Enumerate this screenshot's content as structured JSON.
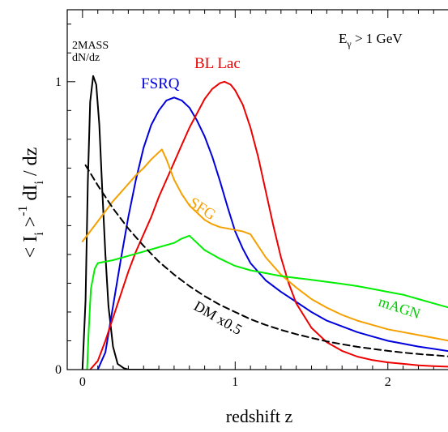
{
  "chart_data": {
    "type": "line",
    "xlabel": "redshift z",
    "ylabel": "< I_i >^-1 dI_i / dz",
    "energy_label": "E_γ > 1 GeV",
    "xlim": [
      -0.1,
      2.5
    ],
    "ylim": [
      0,
      1.25
    ],
    "x_major_ticks": [
      0,
      1,
      2
    ],
    "x_tick_labels": [
      "0",
      "1",
      "2"
    ],
    "y_major_ticks": [
      0,
      1
    ],
    "y_tick_labels": [
      "0",
      "1"
    ],
    "series": [
      {
        "name": "2MASS dN/dz",
        "label_line1": "2MASS",
        "label_line2": "dN/dz",
        "color": "#000000",
        "dashed": false,
        "points": [
          [
            0.0,
            0.0
          ],
          [
            0.02,
            0.24
          ],
          [
            0.035,
            0.65
          ],
          [
            0.05,
            0.93
          ],
          [
            0.07,
            1.02
          ],
          [
            0.09,
            0.99
          ],
          [
            0.11,
            0.85
          ],
          [
            0.13,
            0.62
          ],
          [
            0.15,
            0.4
          ],
          [
            0.17,
            0.22
          ],
          [
            0.2,
            0.08
          ],
          [
            0.23,
            0.02
          ],
          [
            0.27,
            0.005
          ],
          [
            0.3,
            0.0
          ],
          [
            0.5,
            0.0
          ]
        ]
      },
      {
        "name": "FSRQ",
        "color": "#0000dd",
        "dashed": false,
        "points": [
          [
            0.1,
            0.0
          ],
          [
            0.15,
            0.06
          ],
          [
            0.2,
            0.22
          ],
          [
            0.25,
            0.38
          ],
          [
            0.3,
            0.53
          ],
          [
            0.35,
            0.66
          ],
          [
            0.4,
            0.77
          ],
          [
            0.45,
            0.85
          ],
          [
            0.5,
            0.9
          ],
          [
            0.55,
            0.935
          ],
          [
            0.6,
            0.945
          ],
          [
            0.65,
            0.935
          ],
          [
            0.7,
            0.91
          ],
          [
            0.75,
            0.865
          ],
          [
            0.8,
            0.81
          ],
          [
            0.85,
            0.74
          ],
          [
            0.9,
            0.655
          ],
          [
            0.95,
            0.565
          ],
          [
            1.0,
            0.48
          ],
          [
            1.05,
            0.42
          ],
          [
            1.1,
            0.37
          ],
          [
            1.2,
            0.31
          ],
          [
            1.3,
            0.27
          ],
          [
            1.4,
            0.235
          ],
          [
            1.5,
            0.2
          ],
          [
            1.6,
            0.17
          ],
          [
            1.7,
            0.15
          ],
          [
            1.8,
            0.13
          ],
          [
            1.9,
            0.115
          ],
          [
            2.0,
            0.1
          ],
          [
            2.1,
            0.09
          ],
          [
            2.2,
            0.08
          ],
          [
            2.3,
            0.072
          ],
          [
            2.4,
            0.064
          ],
          [
            2.5,
            0.058
          ]
        ]
      },
      {
        "name": "BL Lac",
        "color": "#ee0000",
        "dashed": false,
        "points": [
          [
            0.05,
            0.0
          ],
          [
            0.1,
            0.03
          ],
          [
            0.15,
            0.1
          ],
          [
            0.2,
            0.18
          ],
          [
            0.25,
            0.26
          ],
          [
            0.3,
            0.34
          ],
          [
            0.35,
            0.41
          ],
          [
            0.4,
            0.47
          ],
          [
            0.45,
            0.53
          ],
          [
            0.5,
            0.6
          ],
          [
            0.55,
            0.66
          ],
          [
            0.6,
            0.72
          ],
          [
            0.65,
            0.78
          ],
          [
            0.7,
            0.84
          ],
          [
            0.75,
            0.89
          ],
          [
            0.8,
            0.94
          ],
          [
            0.85,
            0.975
          ],
          [
            0.9,
            0.995
          ],
          [
            0.93,
            1.0
          ],
          [
            0.97,
            0.99
          ],
          [
            1.0,
            0.97
          ],
          [
            1.05,
            0.92
          ],
          [
            1.1,
            0.84
          ],
          [
            1.15,
            0.74
          ],
          [
            1.2,
            0.62
          ],
          [
            1.25,
            0.5
          ],
          [
            1.3,
            0.39
          ],
          [
            1.35,
            0.3
          ],
          [
            1.4,
            0.23
          ],
          [
            1.5,
            0.145
          ],
          [
            1.6,
            0.095
          ],
          [
            1.7,
            0.065
          ],
          [
            1.8,
            0.045
          ],
          [
            1.9,
            0.033
          ],
          [
            2.0,
            0.025
          ],
          [
            2.1,
            0.02
          ],
          [
            2.2,
            0.015
          ],
          [
            2.3,
            0.012
          ],
          [
            2.4,
            0.01
          ],
          [
            2.5,
            0.008
          ]
        ]
      },
      {
        "name": "SFG",
        "color": "#f5a000",
        "dashed": false,
        "points": [
          [
            0.0,
            0.445
          ],
          [
            0.05,
            0.48
          ],
          [
            0.1,
            0.515
          ],
          [
            0.15,
            0.55
          ],
          [
            0.2,
            0.585
          ],
          [
            0.25,
            0.615
          ],
          [
            0.3,
            0.645
          ],
          [
            0.35,
            0.675
          ],
          [
            0.4,
            0.7
          ],
          [
            0.45,
            0.73
          ],
          [
            0.5,
            0.755
          ],
          [
            0.52,
            0.765
          ],
          [
            0.55,
            0.73
          ],
          [
            0.6,
            0.66
          ],
          [
            0.65,
            0.61
          ],
          [
            0.7,
            0.57
          ],
          [
            0.75,
            0.545
          ],
          [
            0.8,
            0.52
          ],
          [
            0.85,
            0.505
          ],
          [
            0.9,
            0.495
          ],
          [
            1.0,
            0.485
          ],
          [
            1.05,
            0.48
          ],
          [
            1.1,
            0.47
          ],
          [
            1.15,
            0.43
          ],
          [
            1.2,
            0.39
          ],
          [
            1.3,
            0.33
          ],
          [
            1.4,
            0.285
          ],
          [
            1.5,
            0.245
          ],
          [
            1.6,
            0.215
          ],
          [
            1.7,
            0.19
          ],
          [
            1.8,
            0.17
          ],
          [
            1.9,
            0.155
          ],
          [
            2.0,
            0.14
          ],
          [
            2.1,
            0.13
          ],
          [
            2.2,
            0.12
          ],
          [
            2.3,
            0.11
          ],
          [
            2.4,
            0.1
          ],
          [
            2.5,
            0.093
          ]
        ]
      },
      {
        "name": "mAGN",
        "color": "#00ee00",
        "dashed": false,
        "points": [
          [
            0.03,
            0.0
          ],
          [
            0.04,
            0.13
          ],
          [
            0.055,
            0.28
          ],
          [
            0.08,
            0.35
          ],
          [
            0.1,
            0.37
          ],
          [
            0.15,
            0.375
          ],
          [
            0.2,
            0.38
          ],
          [
            0.3,
            0.395
          ],
          [
            0.4,
            0.41
          ],
          [
            0.5,
            0.425
          ],
          [
            0.6,
            0.44
          ],
          [
            0.65,
            0.455
          ],
          [
            0.7,
            0.465
          ],
          [
            0.75,
            0.44
          ],
          [
            0.8,
            0.415
          ],
          [
            0.9,
            0.385
          ],
          [
            1.0,
            0.36
          ],
          [
            1.1,
            0.345
          ],
          [
            1.2,
            0.335
          ],
          [
            1.3,
            0.325
          ],
          [
            1.4,
            0.318
          ],
          [
            1.5,
            0.312
          ],
          [
            1.6,
            0.305
          ],
          [
            1.7,
            0.298
          ],
          [
            1.8,
            0.29
          ],
          [
            1.9,
            0.28
          ],
          [
            2.0,
            0.27
          ],
          [
            2.1,
            0.26
          ],
          [
            2.2,
            0.245
          ],
          [
            2.3,
            0.23
          ],
          [
            2.4,
            0.215
          ],
          [
            2.5,
            0.2
          ]
        ]
      },
      {
        "name": "DM x0.5",
        "color": "#000000",
        "dashed": true,
        "points": [
          [
            0.02,
            0.71
          ],
          [
            0.1,
            0.64
          ],
          [
            0.2,
            0.56
          ],
          [
            0.3,
            0.49
          ],
          [
            0.4,
            0.43
          ],
          [
            0.5,
            0.375
          ],
          [
            0.6,
            0.33
          ],
          [
            0.7,
            0.29
          ],
          [
            0.8,
            0.255
          ],
          [
            0.9,
            0.225
          ],
          [
            1.0,
            0.2
          ],
          [
            1.1,
            0.175
          ],
          [
            1.2,
            0.155
          ],
          [
            1.3,
            0.138
          ],
          [
            1.4,
            0.123
          ],
          [
            1.5,
            0.11
          ],
          [
            1.6,
            0.098
          ],
          [
            1.7,
            0.088
          ],
          [
            1.8,
            0.079
          ],
          [
            1.9,
            0.072
          ],
          [
            2.0,
            0.065
          ],
          [
            2.1,
            0.059
          ],
          [
            2.2,
            0.054
          ],
          [
            2.3,
            0.05
          ],
          [
            2.4,
            0.046
          ],
          [
            2.5,
            0.043
          ]
        ]
      }
    ]
  }
}
